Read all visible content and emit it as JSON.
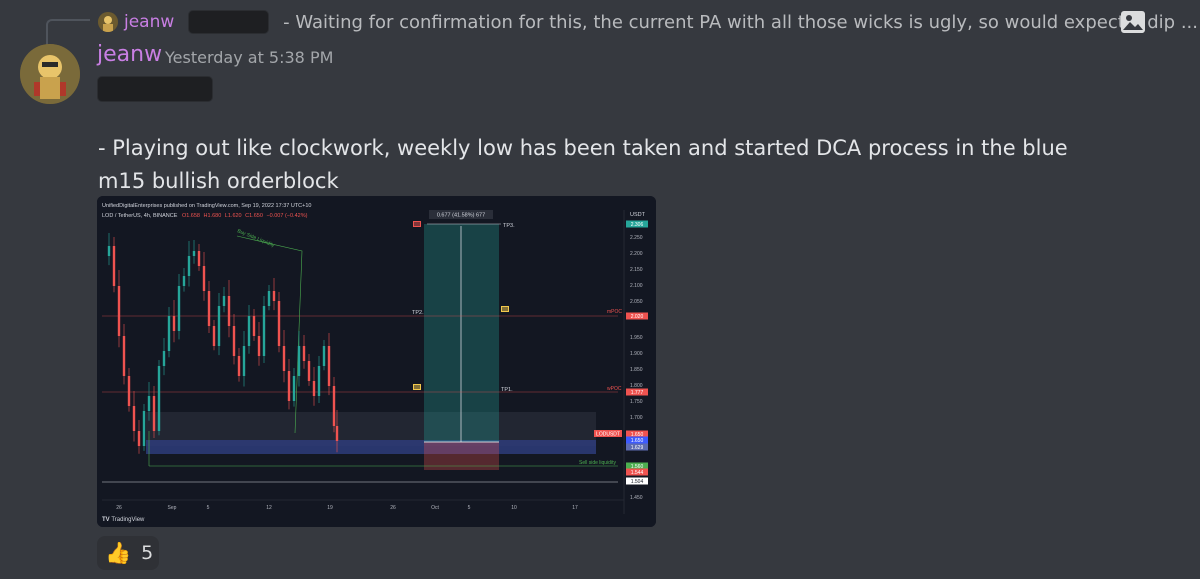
{
  "reply": {
    "author": "jeanw",
    "text": "- Waiting for confirmation for this, the current PA with all those wicks is ugly, so would expect a dip ..."
  },
  "message": {
    "author": "jeanw",
    "timestamp": "Yesterday at 5:38 PM",
    "text": "- Playing out like clockwork, weekly low has been taken and started DCA process in the blue m15 bullish orderblock"
  },
  "chart": {
    "published_line": "UnifiedDigitalEnterprises published on TradingView.com, Sep 19, 2022 17:37 UTC+10",
    "symbol_line_prefix": "LOD / TetherUS, 4h, BINANCE",
    "ohlc": {
      "o": "O1.658",
      "h": "H1.680",
      "l": "L1.620",
      "c": "C1.650",
      "chg": "−0.007 (−0.42%)"
    },
    "currency": "USDT",
    "measure_label": "0.677 (41.58%) 677",
    "tp_labels": [
      "TP3.",
      "TP2.",
      "TP1."
    ],
    "poc_labels": [
      "mPOC",
      "wPOC"
    ],
    "annotations": {
      "buy_side": "Buy Side Liquidity",
      "sell_side": "Sell side liquidity"
    },
    "symbol_tag": "LODUSDT",
    "price_ticks": [
      "2.250",
      "2.200",
      "2.150",
      "2.100",
      "2.050",
      "2.000",
      "1.950",
      "1.900",
      "1.850",
      "1.800",
      "1.750",
      "1.700",
      "1.450"
    ],
    "price_tags": [
      {
        "text": "2.306",
        "color": "#26a69a"
      },
      {
        "text": "2.020",
        "color": "#ef5350"
      },
      {
        "text": "1.777",
        "color": "#ef5350"
      },
      {
        "text": "1.650",
        "color": "#ef5350"
      },
      {
        "text": "1.650",
        "color": "#3d5afe"
      },
      {
        "text": "1.629",
        "color": "#5d6bb0"
      },
      {
        "text": "1.560",
        "color": "#4caf50"
      },
      {
        "text": "1.544",
        "color": "#ef5350"
      },
      {
        "text": "1.504",
        "color": "#ffffff"
      }
    ],
    "time_ticks": [
      "26",
      "Sep",
      "5",
      "12",
      "19",
      "26",
      "Oct",
      "5",
      "10",
      "17"
    ],
    "brand": "TradingView"
  },
  "reaction": {
    "emoji": "👍",
    "count": "5"
  },
  "colors": {
    "background": "#36393f",
    "username": "#c97fe4",
    "chart_bg": "#131722",
    "up": "#26a69a",
    "down": "#ef5350"
  },
  "icons": [
    "reply-avatar-icon",
    "image-attachment-icon",
    "user-avatar-icon",
    "thumbs-up-icon"
  ]
}
